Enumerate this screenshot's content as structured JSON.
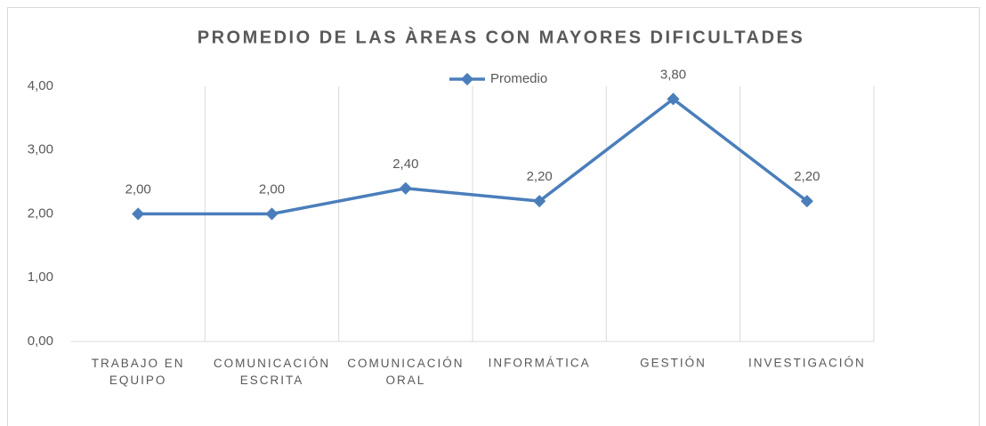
{
  "chart_data": {
    "type": "line",
    "title": "PROMEDIO DE LAS ÀREAS CON MAYORES DIFICULTADES",
    "categories": [
      "TRABAJO EN EQUIPO",
      "COMUNICACIÓN ESCRITA",
      "COMUNICACIÓN ORAL",
      "INFORMÁTICA",
      "GESTIÓN",
      "INVESTIGACIÓN"
    ],
    "series": [
      {
        "name": "Promedio",
        "color": "#4a7ebb",
        "values": [
          2.0,
          2.0,
          2.4,
          2.2,
          3.8,
          2.2
        ],
        "value_labels": [
          "2,00",
          "2,00",
          "2,40",
          "2,20",
          "3,80",
          "2,20"
        ]
      }
    ],
    "ylim": [
      0,
      4
    ],
    "yticks": [
      {
        "value": 0,
        "label": "0,00"
      },
      {
        "value": 1,
        "label": "1,00"
      },
      {
        "value": 2,
        "label": "2,00"
      },
      {
        "value": 3,
        "label": "3,00"
      },
      {
        "value": 4,
        "label": "4,00"
      }
    ],
    "legend": "top"
  }
}
